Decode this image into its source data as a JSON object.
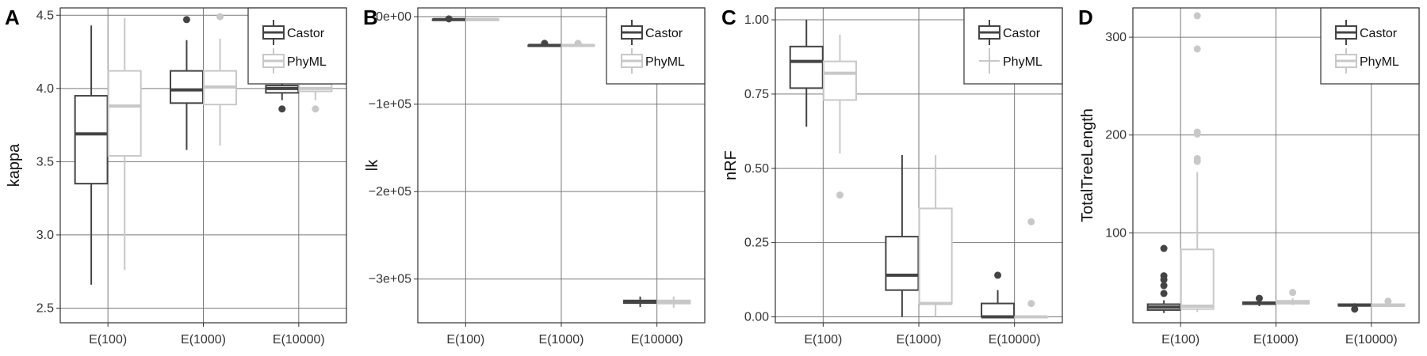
{
  "colors": {
    "castor": "#444444",
    "phyml": "#c8c8c8",
    "grid": "#7a7a7a",
    "frame": "#333333"
  },
  "legend": {
    "items": [
      "Castor",
      "PhyML"
    ],
    "position": "top-right"
  },
  "chart_data": [
    {
      "type": "box",
      "label": "A",
      "ylabel": "kappa",
      "ylim": [
        2.4,
        4.55
      ],
      "categories": [
        "E(100)",
        "E(1000)",
        "E(10000)"
      ],
      "yticks": [
        2.5,
        3.0,
        3.5,
        4.0,
        4.5
      ],
      "yticklabels": [
        "2.5",
        "3.0",
        "3.5",
        "4.0",
        "4.5"
      ],
      "series": [
        {
          "name": "Castor",
          "boxes": [
            {
              "whislo": 2.66,
              "q1": 3.35,
              "med": 3.69,
              "q3": 3.95,
              "whishi": 4.43,
              "fliers": []
            },
            {
              "whislo": 3.58,
              "q1": 3.9,
              "med": 3.99,
              "q3": 4.12,
              "whishi": 4.33,
              "fliers": [
                4.47
              ]
            },
            {
              "whislo": 3.92,
              "q1": 3.97,
              "med": 4.0,
              "q3": 4.02,
              "whishi": 4.06,
              "fliers": [
                3.86,
                4.12
              ]
            }
          ]
        },
        {
          "name": "PhyML",
          "boxes": [
            {
              "whislo": 2.76,
              "q1": 3.54,
              "med": 3.88,
              "q3": 4.12,
              "whishi": 4.48,
              "fliers": []
            },
            {
              "whislo": 3.61,
              "q1": 3.89,
              "med": 4.01,
              "q3": 4.12,
              "whishi": 4.34,
              "fliers": [
                4.49
              ]
            },
            {
              "whislo": 3.92,
              "q1": 3.98,
              "med": 4.0,
              "q3": 4.03,
              "whishi": 4.07,
              "fliers": [
                3.86,
                4.12
              ]
            }
          ]
        }
      ]
    },
    {
      "type": "box",
      "label": "B",
      "ylabel": "lk",
      "ylim": [
        -350000,
        10000
      ],
      "categories": [
        "E(100)",
        "E(1000)",
        "E(10000)"
      ],
      "yticks": [
        0,
        -100000,
        -200000,
        -300000
      ],
      "yticklabels": [
        "0e+00",
        "−1e+05",
        "−2e+05",
        "−3e+05"
      ],
      "series": [
        {
          "name": "Castor",
          "boxes": [
            {
              "whislo": -3800,
              "q1": -3500,
              "med": -3300,
              "q3": -3100,
              "whishi": -2800,
              "fliers": [
                -2500
              ]
            },
            {
              "whislo": -33600,
              "q1": -33100,
              "med": -32900,
              "q3": -32700,
              "whishi": -32200,
              "fliers": [
                -30500
              ]
            },
            {
              "whislo": -332000,
              "q1": -327500,
              "med": -326000,
              "q3": -324500,
              "whishi": -320000,
              "fliers": []
            }
          ]
        },
        {
          "name": "PhyML",
          "boxes": [
            {
              "whislo": -3800,
              "q1": -3500,
              "med": -3300,
              "q3": -3100,
              "whishi": -2800,
              "fliers": []
            },
            {
              "whislo": -33600,
              "q1": -33100,
              "med": -32900,
              "q3": -32700,
              "whishi": -32200,
              "fliers": [
                -30500
              ]
            },
            {
              "whislo": -333000,
              "q1": -328000,
              "med": -326000,
              "q3": -324500,
              "whishi": -320000,
              "fliers": []
            }
          ]
        }
      ]
    },
    {
      "type": "box",
      "label": "C",
      "ylabel": "nRF",
      "ylim": [
        -0.02,
        1.04
      ],
      "categories": [
        "E(100)",
        "E(1000)",
        "E(10000)"
      ],
      "yticks": [
        0.0,
        0.25,
        0.5,
        0.75,
        1.0
      ],
      "yticklabels": [
        "0.00",
        "0.25",
        "0.50",
        "0.75",
        "1.00"
      ],
      "series": [
        {
          "name": "Castor",
          "boxes": [
            {
              "whislo": 0.64,
              "q1": 0.77,
              "med": 0.86,
              "q3": 0.91,
              "whishi": 1.0,
              "fliers": []
            },
            {
              "whislo": 0.0,
              "q1": 0.09,
              "med": 0.14,
              "q3": 0.27,
              "whishi": 0.545,
              "fliers": []
            },
            {
              "whislo": 0.0,
              "q1": 0.0,
              "med": 0.0,
              "q3": 0.045,
              "whishi": 0.09,
              "fliers": [
                0.14
              ]
            }
          ]
        },
        {
          "name": "PhyML",
          "boxes": [
            {
              "whislo": 0.55,
              "q1": 0.73,
              "med": 0.82,
              "q3": 0.86,
              "whishi": 0.95,
              "fliers": [
                0.41
              ]
            },
            {
              "whislo": 0.0,
              "q1": 0.045,
              "med": 0.045,
              "q3": 0.365,
              "whishi": 0.545,
              "fliers": []
            },
            {
              "whislo": 0.0,
              "q1": 0.0,
              "med": 0.0,
              "q3": 0.0,
              "whishi": 0.0,
              "fliers": [
                0.045,
                0.32
              ]
            }
          ]
        }
      ]
    },
    {
      "type": "box",
      "label": "D",
      "ylabel": "TotalTreeLength",
      "ylim": [
        8,
        330
      ],
      "categories": [
        "E(100)",
        "E(1000)",
        "E(10000)"
      ],
      "yticks": [
        100,
        200,
        300
      ],
      "yticklabels": [
        "100",
        "200",
        "300"
      ],
      "series": [
        {
          "name": "Castor",
          "boxes": [
            {
              "whislo": 18,
              "q1": 21,
              "med": 24,
              "q3": 27,
              "whishi": 31,
              "fliers": [
                38,
                46,
                52,
                56,
                84
              ]
            },
            {
              "whislo": 25,
              "q1": 27,
              "med": 28,
              "q3": 29,
              "whishi": 31,
              "fliers": [
                33
              ]
            },
            {
              "whislo": 24,
              "q1": 25.5,
              "med": 26,
              "q3": 27,
              "whishi": 28,
              "fliers": [
                22
              ]
            }
          ]
        },
        {
          "name": "PhyML",
          "boxes": [
            {
              "whislo": 19,
              "q1": 22,
              "med": 25,
              "q3": 83,
              "whishi": 162,
              "fliers": [
                173,
                176,
                201,
                203,
                288,
                322
              ]
            },
            {
              "whislo": 26,
              "q1": 27.5,
              "med": 29,
              "q3": 30.5,
              "whishi": 33,
              "fliers": [
                39
              ]
            },
            {
              "whislo": 24,
              "q1": 25,
              "med": 26,
              "q3": 27,
              "whishi": 28,
              "fliers": [
                30
              ]
            }
          ]
        }
      ]
    }
  ]
}
